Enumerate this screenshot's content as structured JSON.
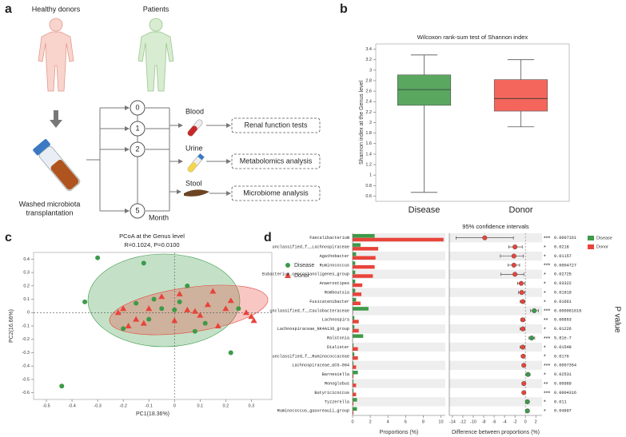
{
  "panel_labels": [
    "a",
    "b",
    "c",
    "d"
  ],
  "diagram": {
    "donors": "Healthy donors",
    "patients": "Patients",
    "months": [
      0,
      1,
      2,
      5
    ],
    "month_label": "Month",
    "samples": [
      "Blood",
      "Urine",
      "Stool"
    ],
    "analyses": [
      "Renal function tests",
      "Metabolomics analysis",
      "Microbiome analysis"
    ],
    "transplant": [
      "Washed microbiota",
      "transplantation"
    ]
  },
  "chart_data": [
    {
      "type": "box",
      "title": "Wilcoxon rank-sum test of Shannon index",
      "y_label": "Shannon index at the Genus level",
      "categories": [
        "Disease",
        "Donor"
      ],
      "colors": [
        "#5aa860",
        "#f4665c"
      ],
      "min": [
        0.67,
        1.92
      ],
      "q1": [
        2.33,
        2.22
      ],
      "median": [
        2.63,
        2.46
      ],
      "q3": [
        2.91,
        2.82
      ],
      "max": [
        3.29,
        3.2
      ],
      "ylim": [
        0.5,
        3.5
      ],
      "yticks": [
        0.6,
        0.8,
        1,
        1.2,
        1.4,
        1.6,
        1.8,
        2,
        2.2,
        2.4,
        2.6,
        2.8,
        3,
        3.2,
        3.4
      ]
    },
    {
      "type": "scatter",
      "title": "PCoA at the Genus level",
      "subtitle": "R=0.1024, P=0.0100",
      "x_label": "PC1(18.36%)",
      "y_label": "PC2(16.66%)",
      "xlim": [
        -0.55,
        0.38
      ],
      "ylim": [
        -0.65,
        0.45
      ],
      "xticks": [
        -0.5,
        -0.4,
        -0.3,
        -0.2,
        -0.1,
        0,
        0.1,
        0.2,
        0.3
      ],
      "yticks": [
        -0.6,
        -0.5,
        -0.4,
        -0.3,
        -0.2,
        -0.1,
        0,
        0.1,
        0.2,
        0.3,
        0.4
      ],
      "series": [
        {
          "name": "Disease",
          "color": "#3d9a48",
          "marker": "circle",
          "x": [
            -0.44,
            -0.3,
            -0.35,
            -0.12,
            -0.08,
            -0.15,
            -0.05,
            0.0,
            0.02,
            0.05,
            -0.1,
            0.12,
            0.22,
            0.25,
            0.08,
            -0.2
          ],
          "y": [
            -0.55,
            0.41,
            0.08,
            0.37,
            0.1,
            0.07,
            0.03,
            0.02,
            0.08,
            0.2,
            -0.05,
            -0.08,
            -0.3,
            0.03,
            -0.14,
            -0.12
          ]
        },
        {
          "name": "Donor",
          "color": "#e8443a",
          "marker": "triangle",
          "x": [
            -0.22,
            -0.15,
            -0.12,
            -0.18,
            -0.05,
            0.02,
            0.05,
            0.08,
            0.1,
            0.13,
            0.15,
            0.2,
            0.22,
            0.28,
            0.3,
            0.31,
            -0.1,
            0.0,
            -0.2,
            0.17
          ],
          "y": [
            0.0,
            -0.05,
            -0.08,
            -0.1,
            0.12,
            0.14,
            0.02,
            0.01,
            -0.02,
            0.06,
            0.16,
            0.03,
            0.09,
            0.0,
            -0.03,
            -0.06,
            0.03,
            -0.06,
            0.03,
            -0.1
          ]
        }
      ]
    },
    {
      "type": "bar",
      "orientation": "horizontal",
      "x_label": "Proportions (%)",
      "categories": [
        "Faecalibacterium",
        "unclassified_f__Lachnospiraceae",
        "Agathobacter",
        "Ruminococcus",
        "Eubacterium_coprostanoligenes_group",
        "Anaerostipes",
        "Romboutsia",
        "Fusicatenibacter",
        "unclassified_f__Caulobacteraceae",
        "Lachnospira",
        "Lachnospiraceae_NK4A136_group",
        "Ralstonia",
        "Dialister",
        "unclassified_f__Ruminococcaceae",
        "Lachnospiraceae_UCG-004",
        "Barnesiella",
        "Monoglobus",
        "Butyricicoccus",
        "Tyzzerella",
        "Ruminococcus_gauvreauii_group"
      ],
      "xlim": [
        0,
        10.5
      ],
      "xticks": [
        0,
        2,
        4,
        6,
        8,
        10
      ],
      "series": [
        {
          "name": "Disease",
          "color": "#3d9a48",
          "values": [
            2.5,
            0.9,
            0.4,
            0.3,
            0.3,
            0.3,
            0.3,
            0.4,
            1.8,
            0.2,
            0.2,
            1.2,
            0.1,
            0.2,
            0.1,
            0.6,
            0.1,
            0.1,
            0.5,
            0.5
          ]
        },
        {
          "name": "Donor",
          "color": "#e8443a",
          "values": [
            10.3,
            2.9,
            2.6,
            2.5,
            2.3,
            1.1,
            1.0,
            0.9,
            0.05,
            0.7,
            0.7,
            0.02,
            0.6,
            0.6,
            0.4,
            0.1,
            0.4,
            0.4,
            0.1,
            0.1
          ]
        }
      ]
    },
    {
      "type": "errorbar",
      "title": "95% confidence intervals",
      "x_label": "Difference between proportions (%)",
      "xlim": [
        -14.6,
        3.2
      ],
      "xticks": [
        -14,
        -12,
        -10,
        -8,
        -6,
        -4,
        -2,
        0,
        2
      ],
      "values": [
        -7.8,
        -2.0,
        -2.2,
        -2.2,
        -2.0,
        -0.8,
        -0.7,
        -0.5,
        1.7,
        -0.5,
        -0.5,
        1.2,
        -0.5,
        -0.4,
        -0.3,
        0.5,
        -0.3,
        -0.3,
        0.4,
        0.4
      ],
      "ci_low": [
        -13.3,
        -3.2,
        -4.8,
        -3.3,
        -4.7,
        -1.5,
        -1.3,
        -1.0,
        1.0,
        -0.9,
        -1.0,
        0.7,
        -1.0,
        -0.8,
        -0.5,
        0.1,
        -0.5,
        -0.5,
        0.1,
        0.1
      ],
      "ci_high": [
        -2.3,
        -0.6,
        -0.4,
        -1.1,
        -0.3,
        -0.1,
        -0.1,
        -0.1,
        2.5,
        -0.1,
        -0.1,
        1.8,
        -0.1,
        -0.1,
        -0.1,
        0.9,
        -0.1,
        -0.1,
        0.7,
        0.7
      ],
      "significance": [
        "***",
        "*",
        "*",
        "***",
        "*",
        "*",
        "*",
        "*",
        "***",
        "**",
        "*",
        "***",
        "*",
        "*",
        "***",
        "*",
        "**",
        "***",
        "*",
        "*"
      ],
      "p_values": [
        0.0007161,
        0.0218,
        0.01157,
        0.0004727,
        0.02725,
        0.03322,
        0.01919,
        0.01661,
        1.618e-06,
        0.00853,
        0.01226,
        5.81e-07,
        0.01548,
        0.0176,
        0.0007354,
        0.02531,
        0.00989,
        0.0004316,
        0.011,
        0.04997
      ],
      "p_label": "P value"
    }
  ]
}
